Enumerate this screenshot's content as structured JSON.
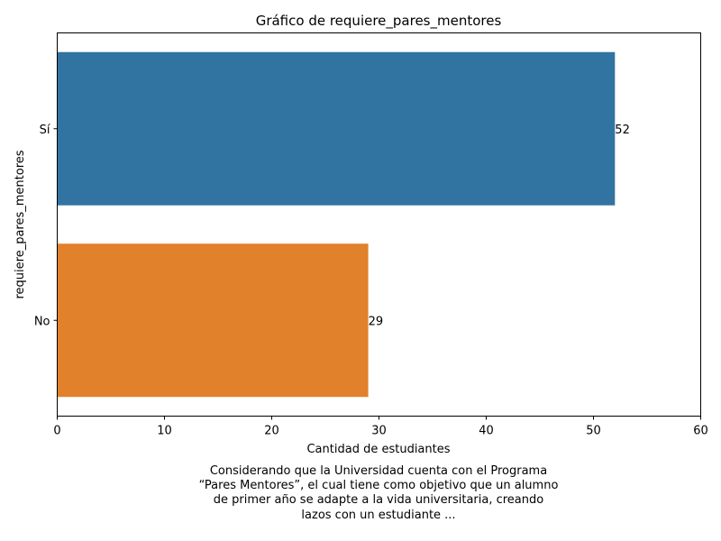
{
  "chart_data": {
    "type": "bar",
    "orientation": "horizontal",
    "title": "Gráfico de requiere_pares_mentores",
    "xlabel": "Cantidad de estudiantes",
    "ylabel": "requiere_pares_mentores",
    "categories": [
      "Sí",
      "No"
    ],
    "values": [
      52,
      29
    ],
    "data_labels": [
      "52",
      "29"
    ],
    "colors": [
      "#3274a1",
      "#e1812c"
    ],
    "xlim": [
      0,
      60
    ],
    "xticks": [
      0,
      10,
      20,
      30,
      40,
      50,
      60
    ],
    "xtick_labels": [
      "0",
      "10",
      "20",
      "30",
      "40",
      "50",
      "60"
    ],
    "grid": false,
    "legend": "none"
  },
  "caption": {
    "lines": [
      "Considerando que la Universidad cuenta con el Programa",
      "“Pares Mentores”, el cual tiene como objetivo que un alumno",
      "de primer año se adapte a la vida universitaria, creando",
      "lazos con un estudiante ..."
    ]
  }
}
